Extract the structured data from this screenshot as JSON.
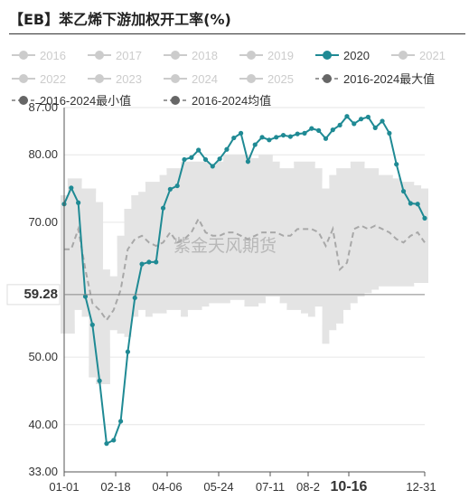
{
  "title": "【EB】苯乙烯下游加权开工率(%)",
  "watermark": "紫金天风期货",
  "colors": {
    "series_2020": "#1f8a94",
    "range_band": "#e4e4e4",
    "avg_line": "#a8a8a8",
    "inactive_legend": "#cccccc",
    "active_legend_text": "#333333",
    "axis_text": "#333333",
    "grid": "#e6e6e6"
  },
  "chart_data": {
    "type": "line",
    "title": "【EB】苯乙烯下游加权开工率(%)",
    "ylim": [
      33,
      87
    ],
    "y_ticks": [
      "33.00",
      "40.00",
      "50.00",
      "59.28",
      "70.00",
      "80.00",
      "87.00"
    ],
    "x_ticks": [
      "01-01",
      "02-18",
      "04-06",
      "05-24",
      "07-11",
      "08-2",
      "10-16",
      "12-31"
    ],
    "highlight_y_tick": "59.28",
    "highlight_x_tick": "10-16",
    "legend": [
      {
        "name": "2016",
        "active": false,
        "style": "dot"
      },
      {
        "name": "2017",
        "active": false,
        "style": "dot"
      },
      {
        "name": "2018",
        "active": false,
        "style": "dot"
      },
      {
        "name": "2019",
        "active": false,
        "style": "dot"
      },
      {
        "name": "2020",
        "active": true,
        "style": "dot"
      },
      {
        "name": "2021",
        "active": false,
        "style": "dot"
      },
      {
        "name": "2022",
        "active": false,
        "style": "dot"
      },
      {
        "name": "2023",
        "active": false,
        "style": "dot"
      },
      {
        "name": "2024",
        "active": false,
        "style": "dot"
      },
      {
        "name": "2025",
        "active": false,
        "style": "dot"
      },
      {
        "name": "2016-2024最大值",
        "active": true,
        "style": "dot-dark"
      },
      {
        "name": "2016-2024最小值",
        "active": true,
        "style": "dot-dark"
      },
      {
        "name": "2016-2024均值",
        "active": true,
        "style": "dot-dark"
      }
    ],
    "series_2020": [
      {
        "week": 1,
        "value": 72.7
      },
      {
        "week": 2,
        "value": 75.1
      },
      {
        "week": 3,
        "value": 72.9
      },
      {
        "week": 4,
        "value": 59.0
      },
      {
        "week": 5,
        "value": 54.8
      },
      {
        "week": 6,
        "value": 46.5
      },
      {
        "week": 7,
        "value": 37.2
      },
      {
        "week": 8,
        "value": 37.7
      },
      {
        "week": 9,
        "value": 40.5
      },
      {
        "week": 10,
        "value": 50.8
      },
      {
        "week": 11,
        "value": 58.8
      },
      {
        "week": 12,
        "value": 63.8
      },
      {
        "week": 13,
        "value": 64.1
      },
      {
        "week": 14,
        "value": 64.1
      },
      {
        "week": 15,
        "value": 72.1
      },
      {
        "week": 16,
        "value": 74.9
      },
      {
        "week": 17,
        "value": 75.4
      },
      {
        "week": 18,
        "value": 79.3
      },
      {
        "week": 19,
        "value": 79.6
      },
      {
        "week": 20,
        "value": 80.7
      },
      {
        "week": 21,
        "value": 79.3
      },
      {
        "week": 22,
        "value": 78.3
      },
      {
        "week": 23,
        "value": 79.4
      },
      {
        "week": 24,
        "value": 80.8
      },
      {
        "week": 25,
        "value": 82.5
      },
      {
        "week": 26,
        "value": 83.2
      },
      {
        "week": 27,
        "value": 79.0
      },
      {
        "week": 28,
        "value": 81.5
      },
      {
        "week": 29,
        "value": 82.6
      },
      {
        "week": 30,
        "value": 82.2
      },
      {
        "week": 31,
        "value": 82.6
      },
      {
        "week": 32,
        "value": 82.9
      },
      {
        "week": 33,
        "value": 82.7
      },
      {
        "week": 34,
        "value": 83.1
      },
      {
        "week": 35,
        "value": 83.2
      },
      {
        "week": 36,
        "value": 83.9
      },
      {
        "week": 37,
        "value": 83.6
      },
      {
        "week": 38,
        "value": 82.4
      },
      {
        "week": 39,
        "value": 83.7
      },
      {
        "week": 40,
        "value": 84.4
      },
      {
        "week": 41,
        "value": 85.7
      },
      {
        "week": 42,
        "value": 84.6
      },
      {
        "week": 43,
        "value": 85.3
      },
      {
        "week": 44,
        "value": 85.6
      },
      {
        "week": 45,
        "value": 84.0
      },
      {
        "week": 46,
        "value": 85.0
      },
      {
        "week": 47,
        "value": 83.2
      },
      {
        "week": 48,
        "value": 78.6
      },
      {
        "week": 49,
        "value": 74.6
      },
      {
        "week": 50,
        "value": 72.8
      },
      {
        "week": 51,
        "value": 72.7
      },
      {
        "week": 52,
        "value": 70.6
      }
    ],
    "range_max": [
      {
        "week": 1,
        "value": 74
      },
      {
        "week": 2,
        "value": 76.5
      },
      {
        "week": 3,
        "value": 76.5
      },
      {
        "week": 4,
        "value": 75
      },
      {
        "week": 5,
        "value": 75
      },
      {
        "week": 6,
        "value": 73
      },
      {
        "week": 7,
        "value": 63
      },
      {
        "week": 8,
        "value": 62
      },
      {
        "week": 9,
        "value": 68
      },
      {
        "week": 10,
        "value": 72
      },
      {
        "week": 11,
        "value": 74
      },
      {
        "week": 12,
        "value": 74.5
      },
      {
        "week": 13,
        "value": 76
      },
      {
        "week": 14,
        "value": 76
      },
      {
        "week": 15,
        "value": 77
      },
      {
        "week": 16,
        "value": 78
      },
      {
        "week": 17,
        "value": 78
      },
      {
        "week": 18,
        "value": 79
      },
      {
        "week": 19,
        "value": 79
      },
      {
        "week": 20,
        "value": 79
      },
      {
        "week": 21,
        "value": 79
      },
      {
        "week": 22,
        "value": 78.5
      },
      {
        "week": 23,
        "value": 79
      },
      {
        "week": 24,
        "value": 80
      },
      {
        "week": 25,
        "value": 80
      },
      {
        "week": 26,
        "value": 80
      },
      {
        "week": 27,
        "value": 80
      },
      {
        "week": 28,
        "value": 79.5
      },
      {
        "week": 29,
        "value": 80
      },
      {
        "week": 30,
        "value": 80
      },
      {
        "week": 31,
        "value": 79
      },
      {
        "week": 32,
        "value": 78
      },
      {
        "week": 33,
        "value": 78
      },
      {
        "week": 34,
        "value": 79
      },
      {
        "week": 35,
        "value": 79
      },
      {
        "week": 36,
        "value": 79
      },
      {
        "week": 37,
        "value": 78
      },
      {
        "week": 38,
        "value": 75
      },
      {
        "week": 39,
        "value": 77
      },
      {
        "week": 40,
        "value": 78
      },
      {
        "week": 41,
        "value": 78
      },
      {
        "week": 42,
        "value": 79
      },
      {
        "week": 43,
        "value": 79
      },
      {
        "week": 44,
        "value": 78
      },
      {
        "week": 45,
        "value": 78
      },
      {
        "week": 46,
        "value": 77
      },
      {
        "week": 47,
        "value": 77
      },
      {
        "week": 48,
        "value": 76.5
      },
      {
        "week": 49,
        "value": 76
      },
      {
        "week": 50,
        "value": 76
      },
      {
        "week": 51,
        "value": 75.5
      },
      {
        "week": 52,
        "value": 75
      }
    ],
    "range_min": [
      {
        "week": 1,
        "value": 53.5
      },
      {
        "week": 2,
        "value": 53.5
      },
      {
        "week": 3,
        "value": 57
      },
      {
        "week": 4,
        "value": 56
      },
      {
        "week": 5,
        "value": 47
      },
      {
        "week": 6,
        "value": 46
      },
      {
        "week": 7,
        "value": 46
      },
      {
        "week": 8,
        "value": 54
      },
      {
        "week": 9,
        "value": 53.5
      },
      {
        "week": 10,
        "value": 53
      },
      {
        "week": 11,
        "value": 56
      },
      {
        "week": 12,
        "value": 57
      },
      {
        "week": 13,
        "value": 56
      },
      {
        "week": 14,
        "value": 56.5
      },
      {
        "week": 15,
        "value": 56.5
      },
      {
        "week": 16,
        "value": 57
      },
      {
        "week": 17,
        "value": 57
      },
      {
        "week": 18,
        "value": 56
      },
      {
        "week": 19,
        "value": 57
      },
      {
        "week": 20,
        "value": 57
      },
      {
        "week": 21,
        "value": 57.5
      },
      {
        "week": 22,
        "value": 58
      },
      {
        "week": 23,
        "value": 58
      },
      {
        "week": 24,
        "value": 58
      },
      {
        "week": 25,
        "value": 58.5
      },
      {
        "week": 26,
        "value": 58.5
      },
      {
        "week": 27,
        "value": 57.5
      },
      {
        "week": 28,
        "value": 57.5
      },
      {
        "week": 29,
        "value": 58
      },
      {
        "week": 30,
        "value": 59
      },
      {
        "week": 31,
        "value": 59
      },
      {
        "week": 32,
        "value": 58
      },
      {
        "week": 33,
        "value": 57
      },
      {
        "week": 34,
        "value": 57
      },
      {
        "week": 35,
        "value": 56.5
      },
      {
        "week": 36,
        "value": 56
      },
      {
        "week": 37,
        "value": 57.5
      },
      {
        "week": 38,
        "value": 52
      },
      {
        "week": 39,
        "value": 54
      },
      {
        "week": 40,
        "value": 55
      },
      {
        "week": 41,
        "value": 57
      },
      {
        "week": 42,
        "value": 58
      },
      {
        "week": 43,
        "value": 59
      },
      {
        "week": 44,
        "value": 59.5
      },
      {
        "week": 45,
        "value": 60
      },
      {
        "week": 46,
        "value": 60.5
      },
      {
        "week": 47,
        "value": 60.5
      },
      {
        "week": 48,
        "value": 60.5
      },
      {
        "week": 49,
        "value": 60.5
      },
      {
        "week": 50,
        "value": 60.5
      },
      {
        "week": 51,
        "value": 61
      },
      {
        "week": 52,
        "value": 61
      }
    ],
    "range_avg": [
      {
        "week": 1,
        "value": 66
      },
      {
        "week": 2,
        "value": 66
      },
      {
        "week": 3,
        "value": 69
      },
      {
        "week": 4,
        "value": 63
      },
      {
        "week": 5,
        "value": 58
      },
      {
        "week": 6,
        "value": 57
      },
      {
        "week": 7,
        "value": 55.5
      },
      {
        "week": 8,
        "value": 57
      },
      {
        "week": 9,
        "value": 60
      },
      {
        "week": 10,
        "value": 66
      },
      {
        "week": 11,
        "value": 67.5
      },
      {
        "week": 12,
        "value": 68
      },
      {
        "week": 13,
        "value": 67
      },
      {
        "week": 14,
        "value": 66.5
      },
      {
        "week": 15,
        "value": 67
      },
      {
        "week": 16,
        "value": 68.5
      },
      {
        "week": 17,
        "value": 67
      },
      {
        "week": 18,
        "value": 67.5
      },
      {
        "week": 19,
        "value": 68.5
      },
      {
        "week": 20,
        "value": 70.5
      },
      {
        "week": 21,
        "value": 68.5
      },
      {
        "week": 22,
        "value": 68
      },
      {
        "week": 23,
        "value": 68
      },
      {
        "week": 24,
        "value": 68.5
      },
      {
        "week": 25,
        "value": 68.5
      },
      {
        "week": 26,
        "value": 68
      },
      {
        "week": 27,
        "value": 67.5
      },
      {
        "week": 28,
        "value": 68
      },
      {
        "week": 29,
        "value": 68.5
      },
      {
        "week": 30,
        "value": 68.5
      },
      {
        "week": 31,
        "value": 68.5
      },
      {
        "week": 32,
        "value": 68
      },
      {
        "week": 33,
        "value": 68
      },
      {
        "week": 34,
        "value": 69
      },
      {
        "week": 35,
        "value": 69
      },
      {
        "week": 36,
        "value": 69
      },
      {
        "week": 37,
        "value": 68.5
      },
      {
        "week": 38,
        "value": 66.5
      },
      {
        "week": 39,
        "value": 69
      },
      {
        "week": 40,
        "value": 63
      },
      {
        "week": 41,
        "value": 64
      },
      {
        "week": 42,
        "value": 69
      },
      {
        "week": 43,
        "value": 69.5
      },
      {
        "week": 44,
        "value": 69
      },
      {
        "week": 45,
        "value": 69.5
      },
      {
        "week": 46,
        "value": 69
      },
      {
        "week": 47,
        "value": 68.5
      },
      {
        "week": 48,
        "value": 67.5
      },
      {
        "week": 49,
        "value": 67
      },
      {
        "week": 50,
        "value": 68
      },
      {
        "week": 51,
        "value": 68.5
      },
      {
        "week": 52,
        "value": 67
      }
    ]
  }
}
